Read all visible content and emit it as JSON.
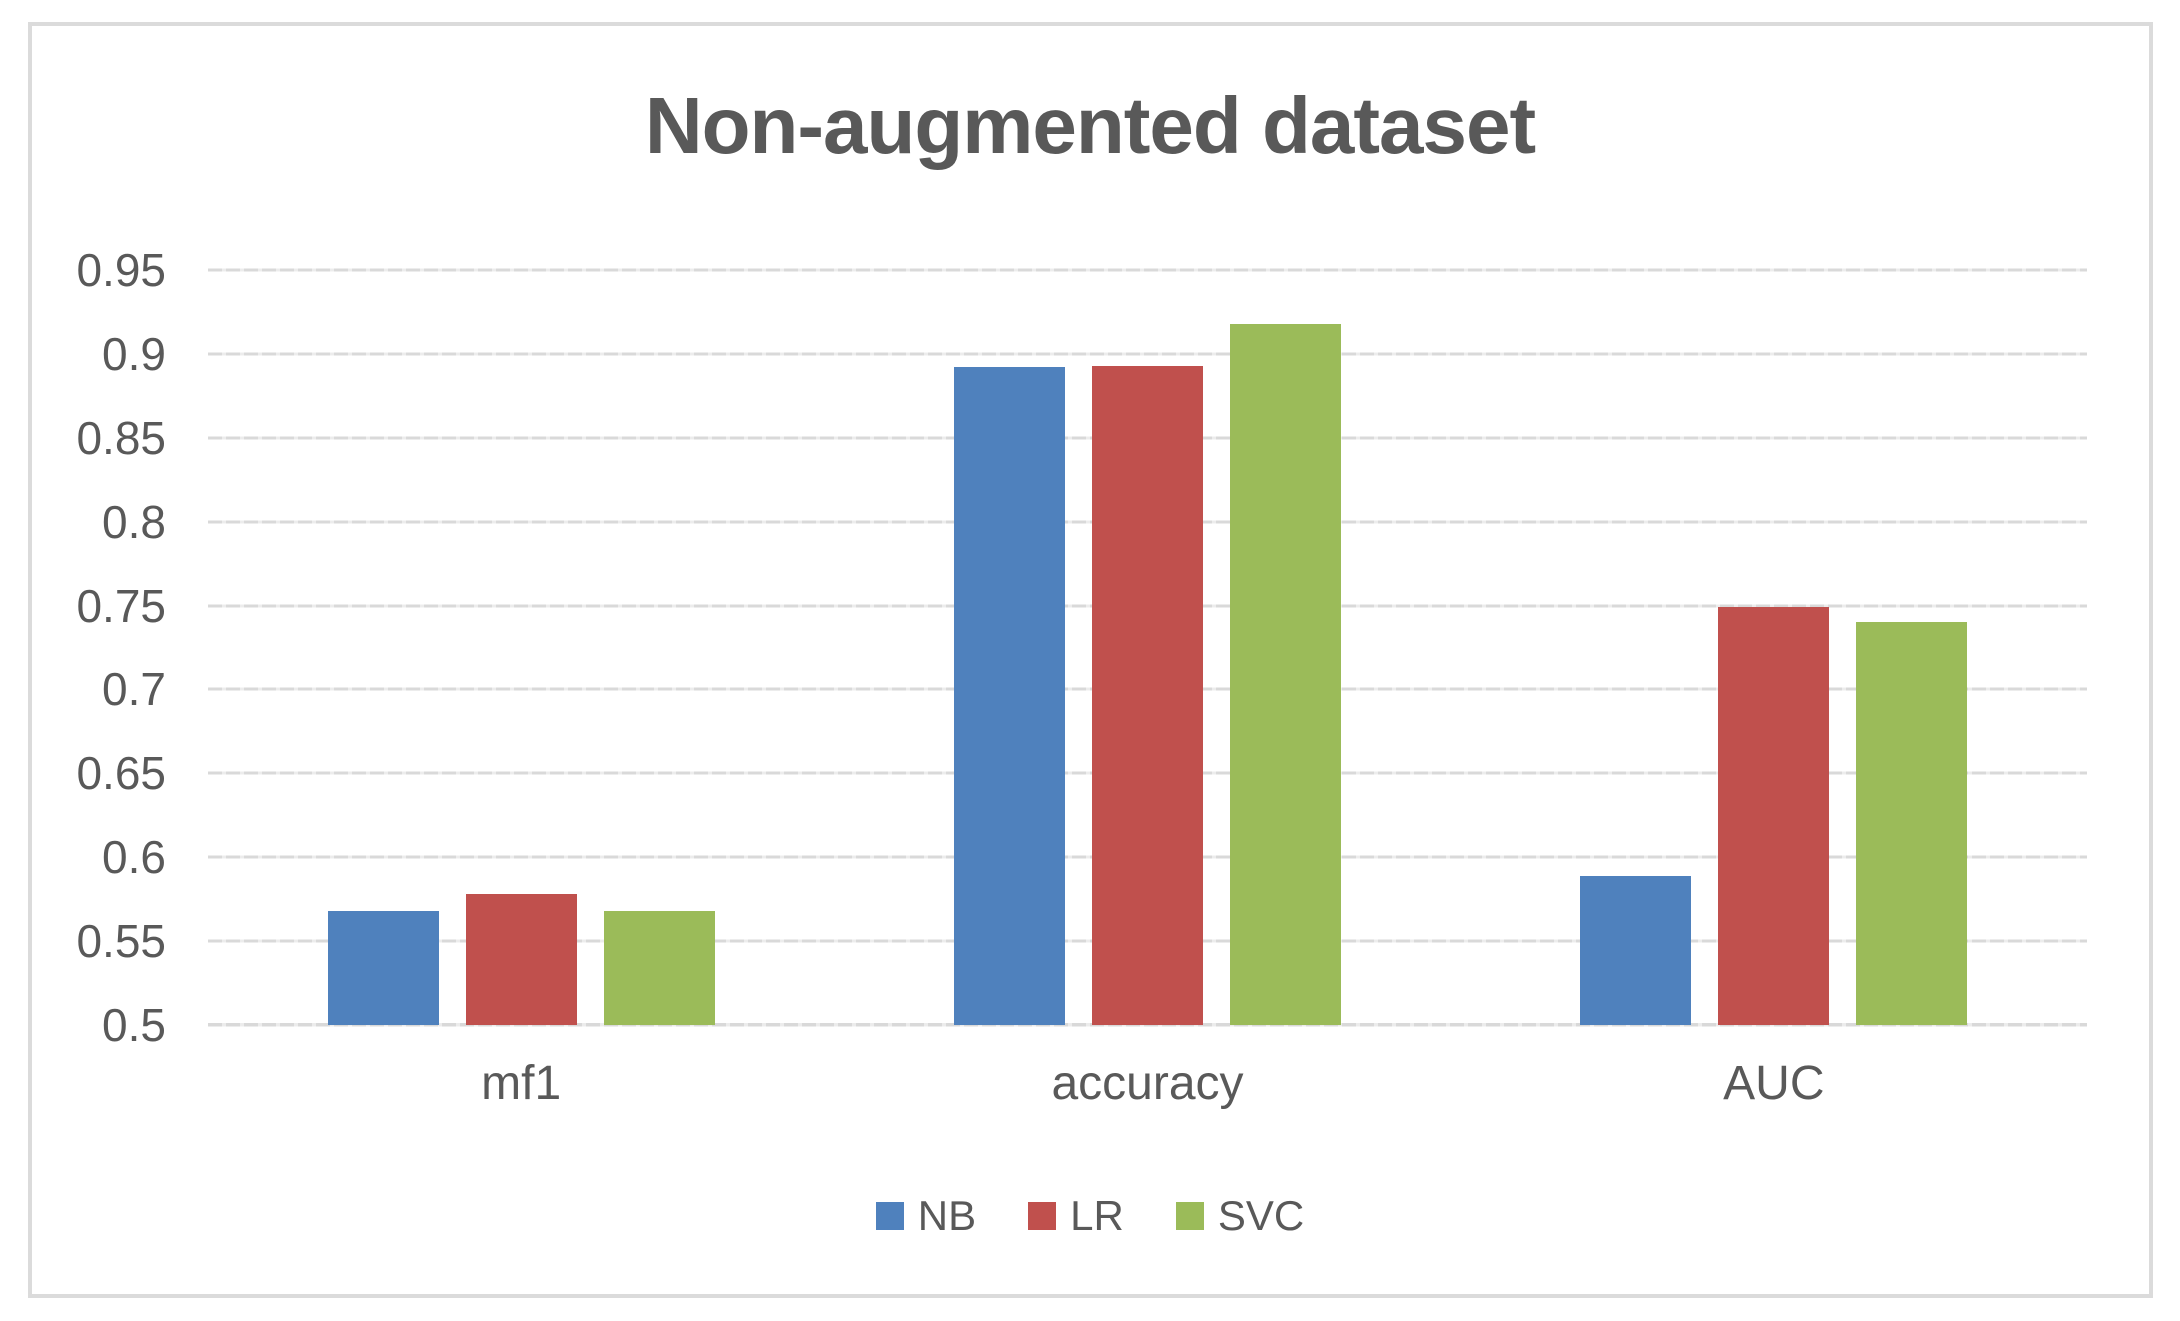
{
  "chart_data": {
    "type": "bar",
    "title": "Non-augmented dataset",
    "categories": [
      "mf1",
      "accuracy",
      "AUC"
    ],
    "series": [
      {
        "name": "NB",
        "color": "#4F81BD",
        "values": [
          0.568,
          0.892,
          0.589
        ]
      },
      {
        "name": "LR",
        "color": "#C0504D",
        "values": [
          0.578,
          0.893,
          0.749
        ]
      },
      {
        "name": "SVC",
        "color": "#9BBB59",
        "values": [
          0.568,
          0.918,
          0.74
        ]
      }
    ],
    "ylim": [
      0.5,
      0.95
    ],
    "ytick_labels": [
      "0.95",
      "0.9",
      "0.85",
      "0.8",
      "0.75",
      "0.7",
      "0.65",
      "0.6",
      "0.55",
      "0.5"
    ],
    "grid": true,
    "legend_position": "bottom",
    "xlabel": "",
    "ylabel": ""
  },
  "style": {
    "text_color": "#595959",
    "gridline_color": "#D9D9D9",
    "frame_border_color": "#DBDBDB",
    "background_color": "#FFFFFF"
  }
}
